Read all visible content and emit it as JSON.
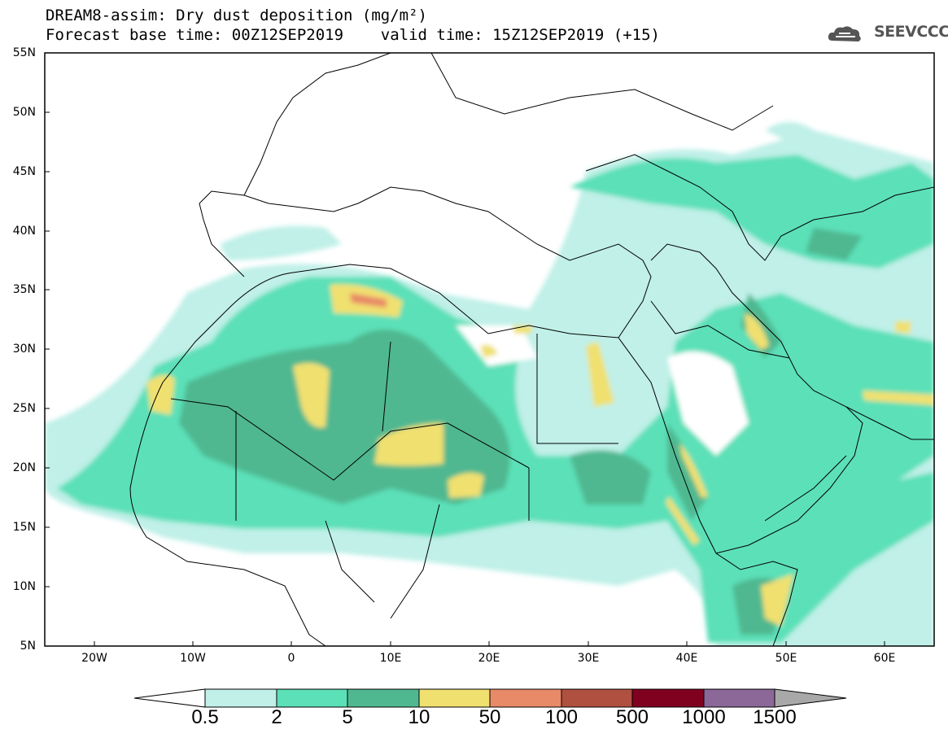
{
  "title": {
    "line1": "DREAM8-assim: Dry dust deposition (mg/m²)",
    "line2": "Forecast base time: 00Z12SEP2019    valid time: 15Z12SEP2019 (+15)"
  },
  "logo": {
    "text": "SEEVCCC",
    "icon": "cloud-logo-icon"
  },
  "map": {
    "projection": "lat-lon",
    "lon_range": [
      -25,
      65
    ],
    "lat_range": [
      5,
      55
    ],
    "lat_labels": [
      "55N",
      "50N",
      "45N",
      "40N",
      "35N",
      "30N",
      "25N",
      "20N",
      "15N",
      "10N",
      "5N"
    ],
    "lat_values": [
      55,
      50,
      45,
      40,
      35,
      30,
      25,
      20,
      15,
      10,
      5
    ],
    "lon_labels": [
      "20W",
      "10W",
      "0",
      "10E",
      "20E",
      "30E",
      "40E",
      "50E",
      "60E"
    ],
    "lon_values": [
      -20,
      -10,
      0,
      10,
      20,
      30,
      40,
      50,
      60
    ]
  },
  "colorbar": {
    "thresholds": [
      "0.5",
      "2",
      "5",
      "10",
      "50",
      "100",
      "500",
      "1000",
      "1500"
    ],
    "colors": [
      "#c0f0e8",
      "#5ce0b8",
      "#50b890",
      "#f0e070",
      "#e88a68",
      "#b05040",
      "#800020",
      "#8c6898"
    ],
    "under_color": "#ffffff",
    "over_color": "#a8a8a8"
  }
}
